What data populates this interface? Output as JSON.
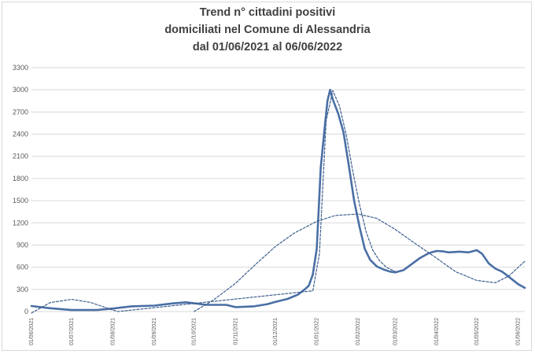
{
  "chart_data": {
    "type": "line",
    "title_lines": [
      "Trend n° cittadini positivi",
      "domiciliati nel Comune di Alessandria",
      "dal 01/06/2021 al 06/06/2022"
    ],
    "xlabel": "",
    "ylabel": "",
    "ylim": [
      0,
      3300
    ],
    "yticks": [
      0,
      300,
      600,
      900,
      1200,
      1500,
      1800,
      2100,
      2400,
      2700,
      3000,
      3300
    ],
    "xlim": [
      "01/06/2021",
      "06/06/2022"
    ],
    "xtick_labels": [
      "01/06/2021",
      "01/07/2021",
      "01/08/2021",
      "01/09/2021",
      "01/10/2021",
      "01/11/2021",
      "01/12/2021",
      "01/01/2022",
      "01/02/2022",
      "01/03/2022",
      "01/04/2022",
      "01/05/2022",
      "01/06/2022"
    ],
    "grid": true,
    "legend": "none",
    "colors": {
      "series": "#4a6fa5",
      "trend": "#3d5f8f",
      "grid": "#d9d9d9"
    },
    "series": [
      {
        "style": "solid",
        "x": [
          "01/06/2021",
          "15/06/2021",
          "01/07/2021",
          "20/07/2021",
          "01/08/2021",
          "15/08/2021",
          "01/09/2021",
          "15/09/2021",
          "25/09/2021",
          "10/10/2021",
          "25/10/2021",
          "01/11/2021",
          "15/11/2021",
          "25/11/2021",
          "01/12/2021",
          "10/12/2021",
          "18/12/2021",
          "23/12/2021",
          "26/12/2021",
          "29/12/2021",
          "01/01/2022",
          "04/01/2022",
          "07/01/2022",
          "09/01/2022",
          "11/01/2022",
          "13/01/2022",
          "17/01/2022",
          "21/01/2022",
          "25/01/2022",
          "29/01/2022",
          "02/02/2022",
          "06/02/2022",
          "10/02/2022",
          "15/02/2022",
          "20/02/2022",
          "25/02/2022",
          "01/03/2022",
          "07/03/2022",
          "13/03/2022",
          "19/03/2022",
          "25/03/2022",
          "28/03/2022",
          "01/04/2022",
          "05/04/2022",
          "10/04/2022",
          "18/04/2022",
          "25/04/2022",
          "01/05/2022",
          "05/05/2022",
          "10/05/2022",
          "15/05/2022",
          "20/05/2022",
          "25/05/2022",
          "01/06/2022",
          "06/06/2022"
        ],
        "y": [
          75,
          45,
          20,
          20,
          40,
          70,
          80,
          110,
          125,
          90,
          90,
          60,
          70,
          100,
          130,
          170,
          230,
          300,
          350,
          500,
          850,
          1950,
          2500,
          2850,
          3000,
          2870,
          2680,
          2430,
          1980,
          1500,
          1150,
          850,
          700,
          610,
          570,
          540,
          530,
          560,
          640,
          720,
          780,
          800,
          820,
          815,
          800,
          810,
          800,
          830,
          780,
          650,
          580,
          540,
          470,
          370,
          320
        ]
      },
      {
        "style": "dashed",
        "x": [
          "01/06/2021",
          "15/06/2021",
          "01/07/2021",
          "15/07/2021",
          "01/08/2021",
          "05/08/2021",
          "29/12/2021",
          "03/01/2022",
          "08/01/2022",
          "13/01/2022",
          "18/01/2022",
          "23/01/2022",
          "28/01/2022",
          "02/02/2022",
          "07/02/2022",
          "12/02/2022",
          "17/02/2022",
          "22/02/2022",
          "01/03/2022"
        ],
        "y": [
          -20,
          120,
          165,
          125,
          20,
          0,
          280,
          780,
          2580,
          2990,
          2780,
          2400,
          1900,
          1450,
          1080,
          830,
          690,
          600,
          540
        ]
      },
      {
        "style": "dashed",
        "x": [
          "01/10/2021",
          "15/10/2021",
          "01/11/2021",
          "15/11/2021",
          "01/12/2021",
          "15/12/2021",
          "01/01/2022",
          "15/01/2022",
          "01/02/2022",
          "15/02/2022",
          "01/03/2022",
          "15/03/2022",
          "01/04/2022",
          "15/04/2022",
          "01/05/2022",
          "15/05/2022",
          "25/05/2022",
          "06/06/2022"
        ],
        "y": [
          0,
          150,
          380,
          620,
          880,
          1060,
          1220,
          1300,
          1320,
          1260,
          1110,
          930,
          720,
          540,
          420,
          390,
          480,
          680
        ]
      }
    ]
  }
}
